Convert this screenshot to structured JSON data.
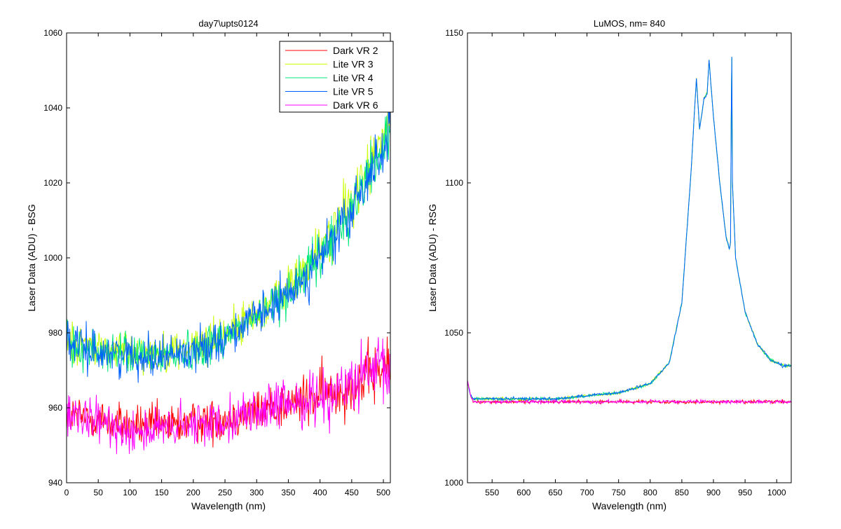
{
  "chart_data": [
    {
      "type": "line",
      "title": "day7\\upts0124",
      "xlabel": "Wavelength (nm)",
      "ylabel": "Laser Data (ADU) - BSG",
      "xlim": [
        0,
        511
      ],
      "ylim": [
        940,
        1060
      ],
      "xticks": [
        0,
        50,
        100,
        150,
        200,
        250,
        300,
        350,
        400,
        450,
        500
      ],
      "yticks": [
        940,
        960,
        980,
        1000,
        1020,
        1040,
        1060
      ],
      "grid": false,
      "legend_position": "top-right",
      "series": [
        {
          "name": "Dark VR 2",
          "color": "#ff0000",
          "x": [
            0,
            50,
            100,
            150,
            200,
            250,
            300,
            350,
            400,
            450,
            500,
            511
          ],
          "y": [
            958,
            957,
            955,
            955,
            956,
            957,
            959,
            961,
            963,
            966,
            970,
            971
          ]
        },
        {
          "name": "Lite VR 3",
          "color": "#c8ff00",
          "x": [
            0,
            50,
            100,
            150,
            200,
            250,
            300,
            350,
            400,
            450,
            500,
            511
          ],
          "y": [
            978,
            976,
            975,
            975,
            976,
            980,
            985,
            992,
            1002,
            1015,
            1032,
            1038
          ]
        },
        {
          "name": "Lite VR 4",
          "color": "#00e87a",
          "x": [
            0,
            50,
            100,
            150,
            200,
            250,
            300,
            350,
            400,
            450,
            500,
            511
          ],
          "y": [
            977,
            975,
            974,
            974,
            975,
            979,
            984,
            991,
            1000,
            1013,
            1030,
            1036
          ]
        },
        {
          "name": "Lite VR 5",
          "color": "#0060ff",
          "x": [
            0,
            50,
            100,
            150,
            200,
            250,
            300,
            350,
            400,
            450,
            500,
            511
          ],
          "y": [
            977,
            975,
            974,
            974,
            975,
            979,
            984,
            990,
            1000,
            1012,
            1030,
            1034
          ]
        },
        {
          "name": "Dark VR 6",
          "color": "#ff00ff",
          "x": [
            0,
            50,
            100,
            150,
            200,
            250,
            300,
            350,
            400,
            450,
            500,
            511
          ],
          "y": [
            957,
            956,
            954,
            954,
            955,
            957,
            959,
            961,
            963,
            966,
            970,
            968
          ]
        }
      ]
    },
    {
      "type": "line",
      "title": "LuMOS, nm= 840",
      "xlabel": "Wavelength (nm)",
      "ylabel": "Laser Data (ADU) - RSG",
      "xlim": [
        511,
        1023
      ],
      "ylim": [
        1000,
        1150
      ],
      "xticks": [
        550,
        600,
        650,
        700,
        750,
        800,
        850,
        900,
        950,
        1000
      ],
      "yticks": [
        1000,
        1050,
        1100,
        1150
      ],
      "grid": false,
      "series": [
        {
          "name": "Dark VR 2",
          "color": "#ff0000",
          "x": [
            511,
            516,
            520,
            600,
            700,
            800,
            900,
            1000,
            1023
          ],
          "y": [
            1034,
            1029,
            1027,
            1027,
            1027,
            1027,
            1027,
            1027,
            1027
          ]
        },
        {
          "name": "Lite VR 3",
          "color": "#c8ff00",
          "x": [
            511,
            516,
            520,
            600,
            650,
            700,
            750,
            800,
            830,
            850,
            865,
            873,
            878,
            885,
            890,
            893,
            900,
            910,
            920,
            925,
            927,
            928,
            929,
            930,
            935,
            950,
            970,
            990,
            1000,
            1010,
            1023
          ],
          "y": [
            1034,
            1029,
            1028,
            1028,
            1028,
            1029,
            1030,
            1033,
            1040,
            1060,
            1105,
            1135,
            1118,
            1128,
            1130,
            1141,
            1122,
            1100,
            1082,
            1078,
            1080,
            1120,
            1142,
            1100,
            1075,
            1057,
            1046,
            1041,
            1040,
            1039,
            1039
          ]
        },
        {
          "name": "Lite VR 4",
          "color": "#00e87a",
          "x": [
            511,
            516,
            520,
            600,
            650,
            700,
            750,
            800,
            830,
            850,
            865,
            873,
            878,
            885,
            890,
            893,
            900,
            910,
            920,
            925,
            927,
            928,
            929,
            930,
            935,
            950,
            970,
            990,
            1000,
            1010,
            1023
          ],
          "y": [
            1034,
            1029,
            1028,
            1028,
            1028,
            1029,
            1030,
            1033,
            1040,
            1060,
            1105,
            1135,
            1118,
            1128,
            1130,
            1141,
            1122,
            1100,
            1082,
            1078,
            1080,
            1120,
            1142,
            1100,
            1075,
            1057,
            1046,
            1041,
            1040,
            1039,
            1039
          ]
        },
        {
          "name": "Lite VR 5",
          "color": "#0060ff",
          "x": [
            511,
            516,
            520,
            600,
            650,
            700,
            750,
            800,
            830,
            850,
            865,
            873,
            878,
            885,
            890,
            893,
            900,
            910,
            920,
            925,
            927,
            928,
            929,
            930,
            935,
            950,
            970,
            990,
            1000,
            1010,
            1023
          ],
          "y": [
            1034,
            1029,
            1028,
            1028,
            1028,
            1029,
            1030,
            1033,
            1040,
            1060,
            1105,
            1135,
            1118,
            1128,
            1130,
            1141,
            1122,
            1100,
            1082,
            1078,
            1080,
            1120,
            1142,
            1100,
            1075,
            1057,
            1046,
            1041,
            1040,
            1039,
            1039
          ]
        },
        {
          "name": "Dark VR 6",
          "color": "#ff00ff",
          "x": [
            511,
            516,
            520,
            600,
            700,
            800,
            900,
            1000,
            1023
          ],
          "y": [
            1034,
            1029,
            1027,
            1027,
            1027,
            1027,
            1027,
            1027,
            1027
          ]
        }
      ]
    }
  ]
}
